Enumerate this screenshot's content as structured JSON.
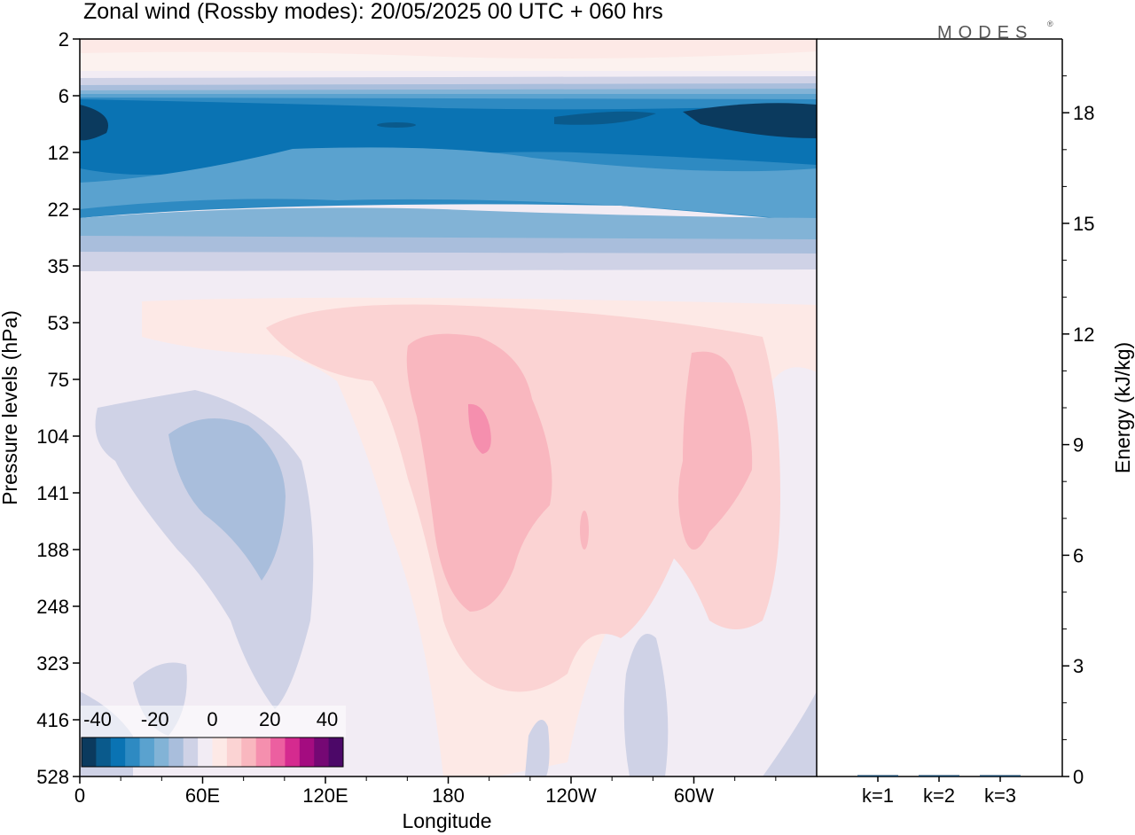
{
  "header": {
    "title": "Zonal wind (Rossby modes):  20/05/2025  00 UTC  + 060 hrs",
    "brand": "MODES",
    "brand_mark": "®"
  },
  "chart_data": [
    {
      "type": "heatmap",
      "title": "Zonal wind (Rossby modes):  20/05/2025  00 UTC  + 060 hrs",
      "xlabel": "Longitude",
      "ylabel": "Pressure levels (hPa)",
      "x_ticks": [
        "0",
        "60E",
        "120E",
        "180",
        "120W",
        "60W"
      ],
      "y_ticks": [
        "2",
        "6",
        "12",
        "22",
        "35",
        "53",
        "75",
        "104",
        "141",
        "188",
        "248",
        "323",
        "416",
        "528"
      ],
      "y_scale": "log (pressure, top = 2 hPa)",
      "colorbar": {
        "labels": [
          "-40",
          "-20",
          "0",
          "20",
          "40"
        ],
        "levels": [
          -40,
          -35,
          -30,
          -25,
          -20,
          -15,
          -10,
          -5,
          0,
          5,
          10,
          15,
          20,
          25,
          30,
          35,
          40
        ],
        "colors": [
          "#0b3a5e",
          "#0a5a8c",
          "#0a73b3",
          "#2e8ac2",
          "#5aa2cf",
          "#82b3d6",
          "#a9bedc",
          "#cfd2e6",
          "#f2ecf4",
          "#fde9e6",
          "#fbd3d3",
          "#f9b7bf",
          "#f58fae",
          "#ec5fa0",
          "#d52a8f",
          "#a40c80",
          "#750874",
          "#4c0868"
        ],
        "placement": "bottom-left inset"
      },
      "grid": false
    },
    {
      "type": "bar",
      "categories": [
        "k=1",
        "k=2",
        "k=3"
      ],
      "values": [
        0.02,
        0.01,
        0.01
      ],
      "ylabel": "Energy (kJ/kg)",
      "y_ticks": [
        "0",
        "3",
        "6",
        "9",
        "12",
        "15",
        "18"
      ],
      "ylim": [
        0,
        20
      ],
      "bar_color": "#0b3a5e"
    }
  ],
  "colors": {
    "background": "#ffffff",
    "zero_band": "#f2ecf4"
  }
}
